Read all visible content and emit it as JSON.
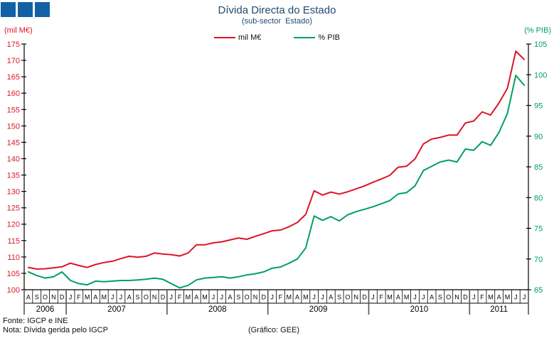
{
  "title": "Dívida Directa do Estado",
  "subtitle": "(sub-sector  Estado)",
  "legend": [
    {
      "label": "mil M€",
      "color": "#dd1527"
    },
    {
      "label": "% PIB",
      "color": "#00a05f"
    }
  ],
  "left_axis": {
    "label": "(mil M€)",
    "color": "#dd1527",
    "min": 100,
    "max": 175,
    "step": 5
  },
  "right_axis": {
    "label": "(% PIB)",
    "color": "#00a05f",
    "min": 65,
    "max": 105,
    "step": 5
  },
  "footer": {
    "source": "Fonte: IGCP e INE",
    "note": "Nota: Dívida gerida pelo IGCP",
    "credit": "(Gráfico: GEE)"
  },
  "chart_data": {
    "type": "line",
    "title": "Dívida Directa do Estado (sub-sector Estado)",
    "x_months": [
      "A",
      "S",
      "O",
      "N",
      "D",
      "J",
      "F",
      "M",
      "A",
      "M",
      "J",
      "J",
      "A",
      "S",
      "O",
      "N",
      "D",
      "J",
      "F",
      "M",
      "A",
      "M",
      "J",
      "J",
      "A",
      "S",
      "O",
      "N",
      "D",
      "J",
      "F",
      "M",
      "A",
      "M",
      "J",
      "J",
      "A",
      "S",
      "O",
      "N",
      "D",
      "J",
      "F",
      "M",
      "A",
      "M",
      "J",
      "J",
      "A",
      "S",
      "O",
      "N",
      "D",
      "J",
      "F",
      "M",
      "A",
      "M",
      "J",
      "J"
    ],
    "x_start": "Aug 2006",
    "x_end": "Jul 2011",
    "year_groups": [
      {
        "label": "2006",
        "months": 5
      },
      {
        "label": "2007",
        "months": 12
      },
      {
        "label": "2008",
        "months": 12
      },
      {
        "label": "2009",
        "months": 12
      },
      {
        "label": "2010",
        "months": 12
      },
      {
        "label": "2011",
        "months": 7
      }
    ],
    "left_ylim": [
      100,
      175
    ],
    "right_ylim": [
      65,
      105
    ],
    "grid": false,
    "legend_position": "top-center",
    "series": [
      {
        "name": "mil M€",
        "axis": "left",
        "color": "#dd1527",
        "values": [
          106.8,
          106.3,
          106.4,
          106.7,
          107.0,
          108.1,
          107.4,
          106.8,
          107.7,
          108.3,
          108.7,
          109.5,
          110.2,
          109.9,
          110.2,
          111.2,
          110.9,
          110.7,
          110.3,
          111.2,
          113.7,
          113.7,
          114.3,
          114.6,
          115.2,
          115.8,
          115.4,
          116.3,
          117.1,
          118.0,
          118.2,
          119.2,
          120.5,
          123.0,
          130.2,
          128.9,
          129.8,
          129.2,
          129.9,
          130.8,
          131.7,
          132.8,
          133.8,
          134.9,
          137.4,
          137.7,
          139.9,
          144.5,
          146.0,
          146.5,
          147.2,
          147.2,
          150.9,
          151.5,
          154.3,
          153.3,
          157.0,
          161.5,
          172.8,
          170.3
        ]
      },
      {
        "name": "% PIB",
        "axis": "right",
        "color": "#00a05f",
        "values": [
          67.9,
          67.3,
          66.9,
          67.1,
          67.9,
          66.5,
          66.0,
          65.8,
          66.4,
          66.3,
          66.4,
          66.5,
          66.5,
          66.6,
          66.7,
          66.9,
          66.7,
          66.0,
          65.3,
          65.7,
          66.6,
          66.9,
          67.0,
          67.1,
          66.9,
          67.1,
          67.4,
          67.6,
          67.9,
          68.5,
          68.7,
          69.3,
          70.0,
          71.8,
          77.0,
          76.3,
          76.9,
          76.2,
          77.2,
          77.7,
          78.1,
          78.5,
          79.0,
          79.5,
          80.6,
          80.8,
          81.9,
          84.4,
          85.1,
          85.8,
          86.1,
          85.8,
          87.9,
          87.7,
          89.1,
          88.5,
          90.6,
          93.7,
          99.9,
          98.3
        ]
      }
    ]
  }
}
